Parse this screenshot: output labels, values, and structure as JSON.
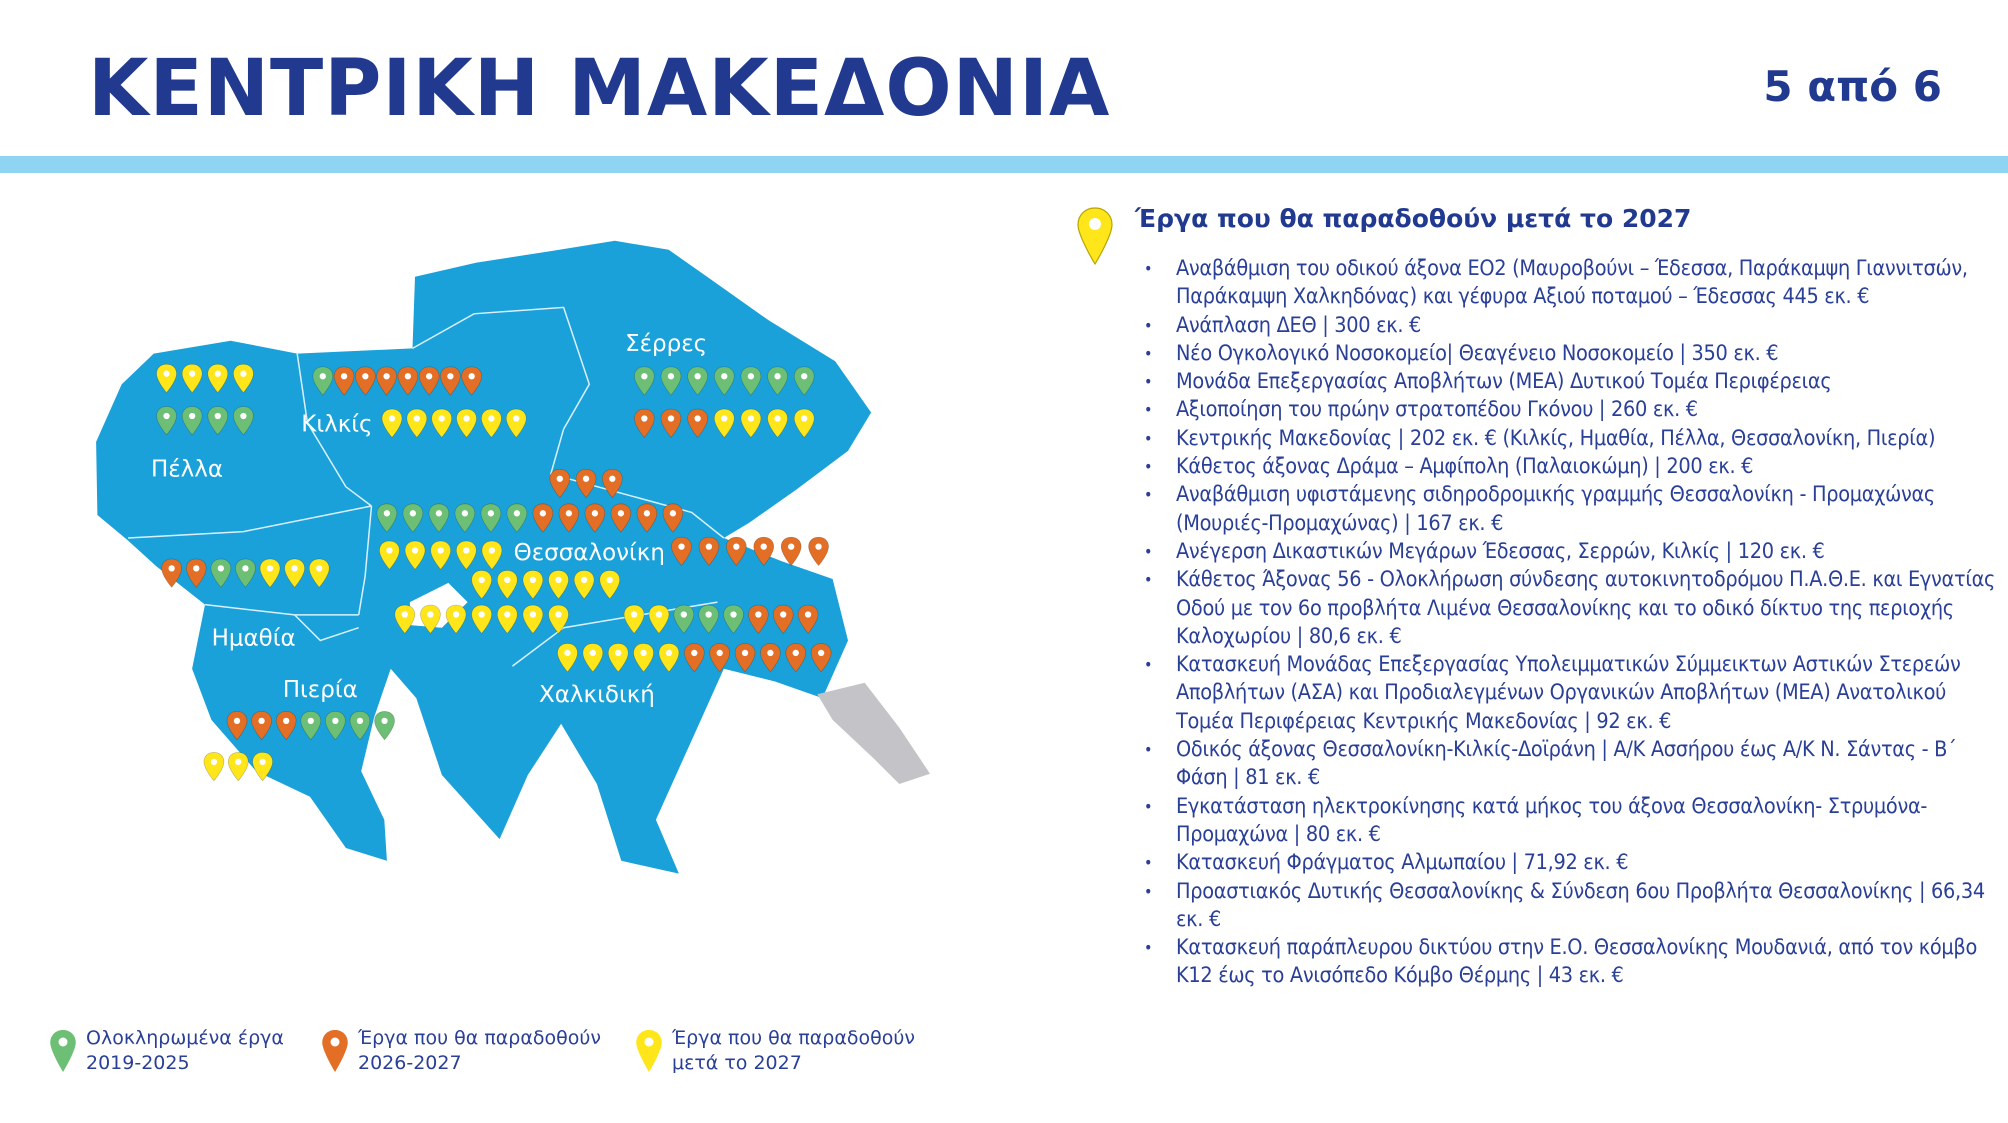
{
  "header": {
    "title": "ΚΕΝΤΡΙΚΗ ΜΑΚΕΔΟΝΙΑ",
    "page": "5 από 6"
  },
  "colors": {
    "map": "#1aa1d9",
    "title": "#213a8f",
    "accent_bar": "#8fd4f2",
    "completed": "#6cbf74",
    "orange": "#e36f26",
    "yellow": "#ffe61a",
    "athos": "#c4c4c8"
  },
  "map": {
    "regions": [
      "Σέρρες",
      "Κιλκίς",
      "Πέλλα",
      "Θεσσαλονίκη",
      "Ημαθία",
      "Πιερία",
      "Χαλκιδική"
    ],
    "pin_rows": [
      "YYYY",
      "GGGG",
      "GOOOOOOO",
      "YYYYYY",
      "GGGGGGG",
      "OOOYYYY",
      "OOO",
      "GGGGGGOOOOOO",
      "YYYYY",
      "OOOOOO",
      "YYYYYY",
      "YYYYYYY",
      "YYGGGOOO",
      "YYYYYOOOOOO",
      "OOGGYYY",
      "OOOGGGG",
      "YYY"
    ]
  },
  "legend": [
    {
      "status": "G",
      "label": "Ολοκληρωμένα έργα\n2019-2025"
    },
    {
      "status": "O",
      "label": "Έργα που θα παραδοθούν\n2026-2027"
    },
    {
      "status": "Y",
      "label": "Έργα που θα παραδοθούν\nμετά το 2027"
    }
  ],
  "projects": {
    "heading": "Έργα που θα παραδοθούν μετά το 2027",
    "items": [
      "Αναβάθμιση του οδικού άξονα ΕΟ2 (Μαυροβούνι – Έδεσσα, Παράκαμψη Γιαννιτσών, Παράκαμψη Χαλκηδόνας) και γέφυρα Αξιού ποταμού – Έδεσσας 445 εκ. €",
      "Ανάπλαση ΔΕΘ | 300 εκ. €",
      "Νέο Ογκολογικό Νοσοκομείο| Θεαγένειο Νοσοκομείο | 350 εκ. €",
      "Μονάδα Επεξεργασίας Αποβλήτων (ΜΕΑ) Δυτικού Τομέα Περιφέρειας",
      "Αξιοποίηση του πρώην στρατοπέδου Γκόνου | 260 εκ. €",
      "Κεντρικής Μακεδονίας | 202 εκ. € (Κιλκίς, Ημαθία, Πέλλα, Θεσσαλονίκη, Πιερία)",
      "Κάθετος άξονας Δράμα – Αμφίπολη (Παλαιοκώμη) | 200 εκ. €",
      "Αναβάθμιση υφιστάμενης σιδηροδρομικής γραμμής Θεσσαλονίκη - Προμαχώνας (Μουριές-Προμαχώνας) | 167 εκ. €",
      "Ανέγερση Δικαστικών Μεγάρων Έδεσσας, Σερρών, Κιλκίς | 120 εκ. €",
      "Κάθετος Άξονας 56 - Ολοκλήρωση σύνδεσης αυτοκινητοδρόμου Π.Α.Θ.Ε. και Εγνατίας Οδού με τον 6ο προβλήτα Λιμένα Θεσσαλονίκης και το οδικό δίκτυο της περιοχής Καλοχωρίου | 80,6 εκ. €",
      "Κατασκευή Μονάδας Επεξεργασίας Υπολειμματικών Σύμμεικτων Αστικών Στερεών Αποβλήτων (ΑΣΑ) και Προδιαλεγμένων Οργανικών Αποβλήτων (ΜΕΑ) Ανατολικού Τομέα Περιφέρειας Κεντρικής Μακεδονίας | 92 εκ. €",
      "Οδικός άξονας Θεσσαλονίκη-Κιλκίς-Δοϊράνη | Α/Κ Ασσήρου έως Α/Κ Ν. Σάντας - Β΄ Φάση | 81 εκ. €",
      "Εγκατάσταση ηλεκτροκίνησης κατά μήκος του άξονα Θεσσαλονίκη- Στρυμόνα- Προμαχώνα | 80 εκ. €",
      "Κατασκευή Φράγματος Αλμωπαίου | 71,92 εκ. €",
      "Προαστιακός Δυτικής Θεσσαλονίκης & Σύνδεση 6ου Προβλήτα Θεσσαλονίκης | 66,34 εκ. €",
      "Κατασκευή παράπλευρου δικτύου στην Ε.Ο. Θεσσαλονίκης Μουδανιά, από τον κόμβο Κ12 έως το Ανισόπεδο Κόμβο Θέρμης | 43 εκ. €"
    ]
  }
}
